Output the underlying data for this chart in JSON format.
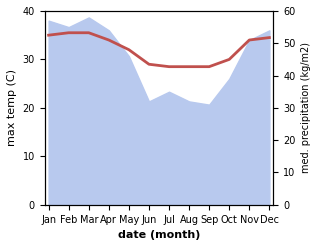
{
  "months": [
    "Jan",
    "Feb",
    "Mar",
    "Apr",
    "May",
    "Jun",
    "Jul",
    "Aug",
    "Sep",
    "Oct",
    "Nov",
    "Dec"
  ],
  "month_x": [
    0,
    1,
    2,
    3,
    4,
    5,
    6,
    7,
    8,
    9,
    10,
    11
  ],
  "temp": [
    35,
    35.5,
    35.5,
    34,
    32,
    29,
    28.5,
    28.5,
    28.5,
    30,
    34,
    34.5
  ],
  "precip": [
    57,
    55,
    58,
    54,
    46,
    32,
    35,
    32,
    31,
    39,
    51,
    54
  ],
  "temp_color": "#c0504d",
  "precip_color": "#b8c9ee",
  "ylim_left": [
    0,
    40
  ],
  "ylim_right": [
    0,
    60
  ],
  "xlabel": "date (month)",
  "ylabel_left": "max temp (C)",
  "ylabel_right": "med. precipitation (kg/m2)",
  "bg_color": "#ffffff",
  "temp_linewidth": 2.0
}
